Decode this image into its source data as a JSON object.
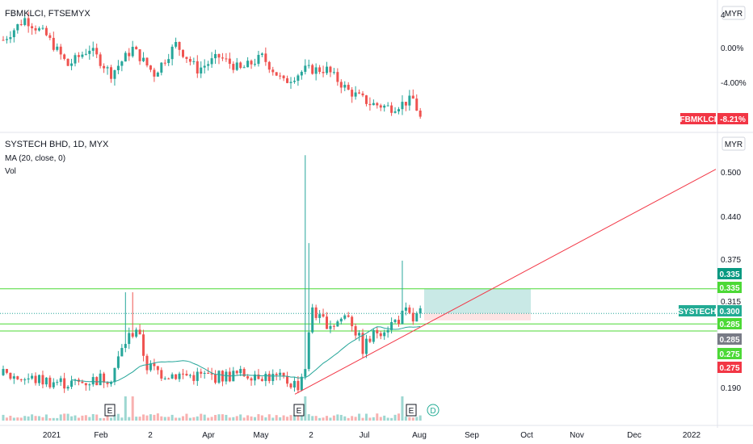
{
  "top_pane": {
    "symbol": "FBMKLCI, FTSEMYX",
    "currency": "MYR",
    "axis_ticks": [
      "4",
      "0.00%",
      "-4.00%"
    ],
    "tag": {
      "label": "FBMKLCI",
      "value": "-8.21%",
      "color": "#f23645"
    }
  },
  "main_pane": {
    "symbol": "SYSTECH BHD, 1D, MYX",
    "indicator": "MA (20, close, 0)",
    "volume_label": "Vol",
    "currency": "MYR",
    "axis_ticks": [
      "0.500",
      "0.440",
      "0.375",
      "0.315",
      "0.190"
    ]
  },
  "price_tags": [
    {
      "label": "",
      "value": "0.335",
      "color": "#089981"
    },
    {
      "label": "",
      "value": "0.335",
      "color": "#4cd936"
    },
    {
      "label": "SYSTECH",
      "value": "0.300",
      "color": "#22ab94"
    },
    {
      "label": "",
      "value": "0.285",
      "color": "#4cd936"
    },
    {
      "label": "",
      "value": "0.285",
      "color": "#787b86"
    },
    {
      "label": "",
      "value": "0.275",
      "color": "#4cd936"
    },
    {
      "label": "",
      "value": "0.275",
      "color": "#f23645"
    }
  ],
  "x_axis": [
    "2021",
    "Feb",
    "2",
    "Apr",
    "May",
    "2",
    "Jul",
    "Aug",
    "Sep",
    "Oct",
    "Nov",
    "Dec",
    "2022"
  ],
  "events": [
    "E",
    "E",
    "E",
    "D"
  ],
  "colors": {
    "up": "#26a69a",
    "down": "#ef5350",
    "ma": "#26a69a",
    "hline": "#4cd936",
    "trend": "#f23645",
    "zone_profit": "#b2dfdb",
    "zone_loss": "#fde0e0"
  },
  "chart_data": {
    "type": "candlestick",
    "title": "SYSTECH BHD, 1D, MYX",
    "ylim": [
      0.17,
      0.52
    ],
    "horizontal_levels": [
      0.335,
      0.285,
      0.275
    ],
    "last_price": 0.3,
    "trendline": {
      "from": [
        "2021-05-20",
        0.185
      ],
      "to": [
        "2021-12-31",
        0.505
      ]
    },
    "series": [
      {
        "name": "SYSTECH BHD",
        "x": [
          "2021-01",
          "2021-02",
          "2021-03",
          "2021-04",
          "2021-05",
          "2021-06",
          "2021-07",
          "2021-08"
        ],
        "values": [
          0.215,
          0.25,
          0.215,
          0.215,
          0.22,
          0.28,
          0.285,
          0.3
        ]
      },
      {
        "name": "FBMKLCI",
        "x": [
          "2021-01",
          "2021-02",
          "2021-03",
          "2021-04",
          "2021-05",
          "2021-06",
          "2021-07",
          "2021-08"
        ],
        "values": [
          2.0,
          -1.0,
          -1.0,
          -0.5,
          -2.5,
          -2.0,
          -6.5,
          -8.21
        ]
      }
    ]
  }
}
